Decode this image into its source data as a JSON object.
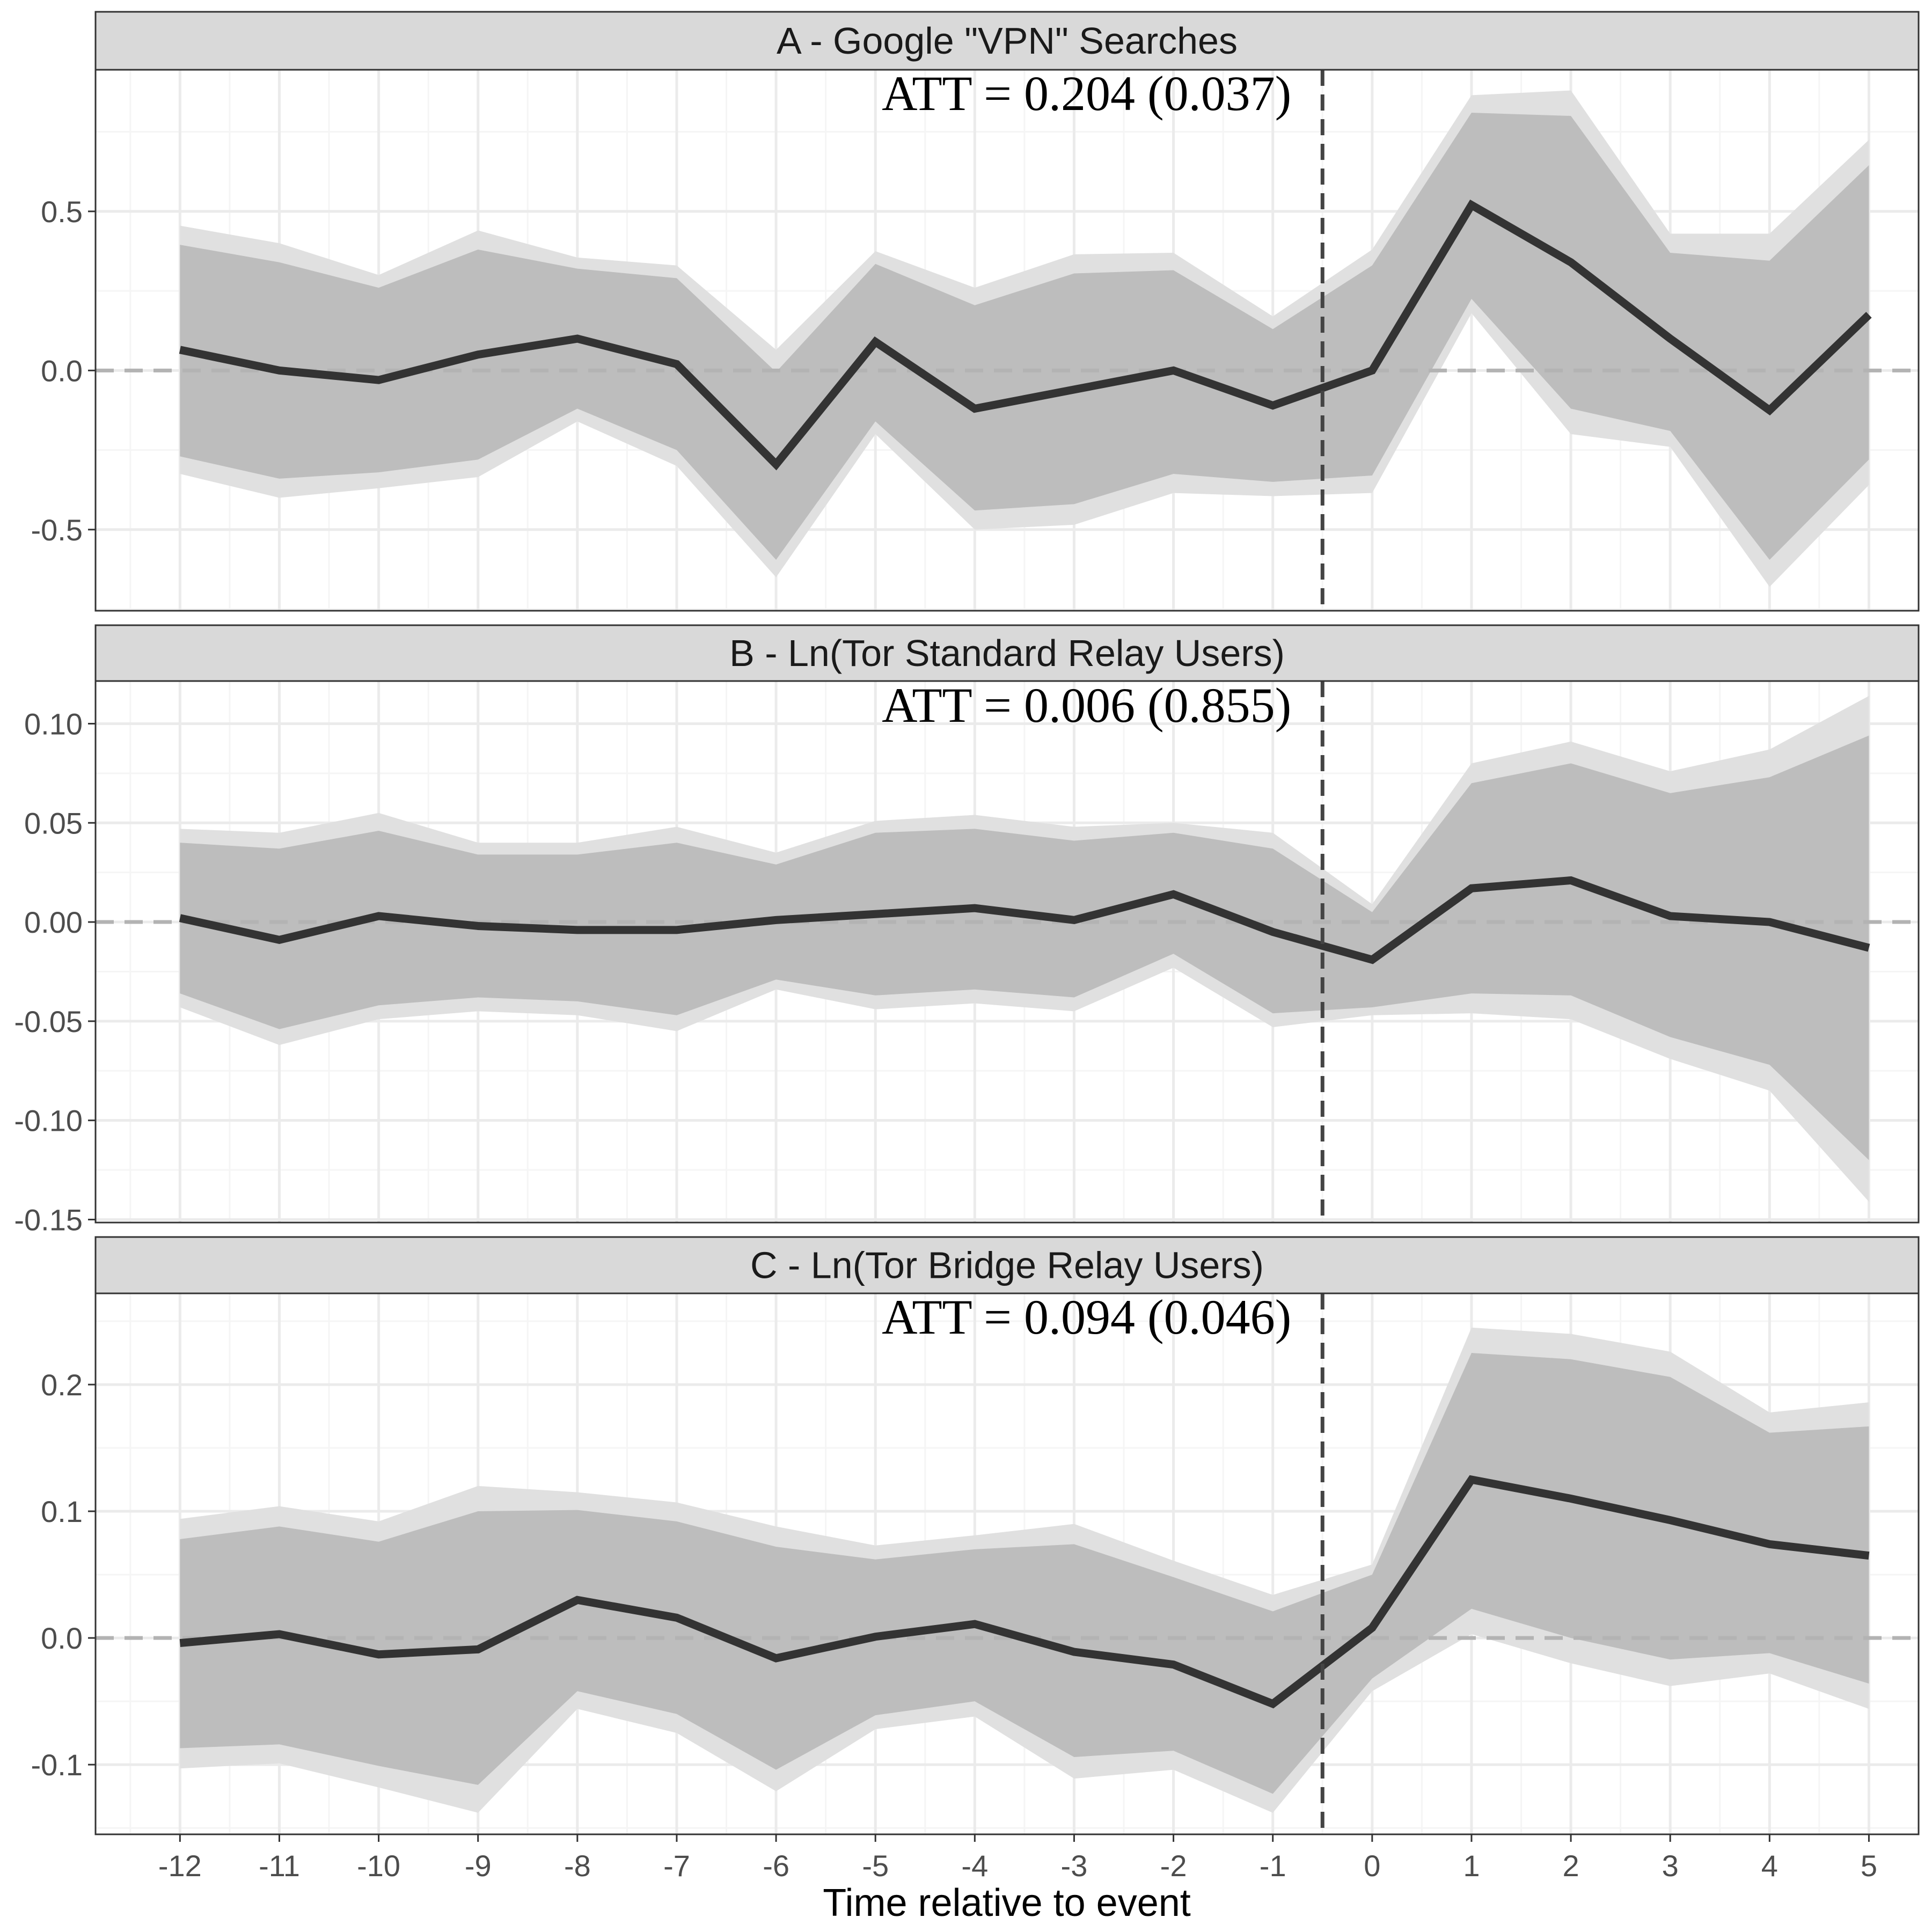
{
  "chart_data": {
    "type": "line",
    "xlabel": "Time relative to event",
    "x": [
      -12,
      -11,
      -10,
      -9,
      -8,
      -7,
      -6,
      -5,
      -4,
      -3,
      -2,
      -1,
      0,
      1,
      2,
      3,
      4,
      5
    ],
    "x_tick_labels": [
      "-12",
      "-11",
      "-10",
      "-9",
      "-8",
      "-7",
      "-6",
      "-5",
      "-4",
      "-3",
      "-2",
      "-1",
      "0",
      "1",
      "2",
      "3",
      "4",
      "5"
    ],
    "xlim": [
      -12.85,
      5.5
    ],
    "event_line_x": -0.5,
    "panels": [
      {
        "title": "A - Google \"VPN\" Searches",
        "annotation": "ATT = 0.204 (0.037)",
        "ylim": [
          -0.755,
          0.945
        ],
        "y_ticks": [
          -0.5,
          0.0,
          0.5
        ],
        "y_tick_labels": [
          "-0.5",
          "0.0",
          "0.5"
        ],
        "estimate": [
          0.065,
          0.0,
          -0.03,
          0.05,
          0.1,
          0.02,
          -0.295,
          0.09,
          -0.12,
          -0.06,
          0.0,
          -0.11,
          0.0,
          0.52,
          0.34,
          0.1,
          -0.125,
          0.175
        ],
        "ci_inner_lower": [
          -0.27,
          -0.34,
          -0.32,
          -0.28,
          -0.12,
          -0.25,
          -0.595,
          -0.16,
          -0.44,
          -0.42,
          -0.325,
          -0.35,
          -0.33,
          0.225,
          -0.12,
          -0.19,
          -0.595,
          -0.28
        ],
        "ci_inner_upper": [
          0.395,
          0.34,
          0.26,
          0.38,
          0.32,
          0.29,
          -0.005,
          0.335,
          0.205,
          0.305,
          0.315,
          0.13,
          0.33,
          0.81,
          0.8,
          0.37,
          0.345,
          0.645
        ],
        "ci_outer_lower": [
          -0.325,
          -0.4,
          -0.37,
          -0.335,
          -0.16,
          -0.3,
          -0.65,
          -0.2,
          -0.5,
          -0.485,
          -0.385,
          -0.395,
          -0.385,
          0.18,
          -0.2,
          -0.24,
          -0.68,
          -0.36
        ],
        "ci_outer_upper": [
          0.455,
          0.4,
          0.3,
          0.44,
          0.355,
          0.33,
          0.065,
          0.375,
          0.26,
          0.365,
          0.37,
          0.17,
          0.38,
          0.865,
          0.88,
          0.43,
          0.43,
          0.725
        ]
      },
      {
        "title": "B - Ln(Tor Standard Relay Users)",
        "annotation": "ATT = 0.006 (0.855)",
        "ylim": [
          -0.1515,
          0.1215
        ],
        "y_ticks": [
          -0.15,
          -0.1,
          -0.05,
          0.0,
          0.05,
          0.1
        ],
        "y_tick_labels": [
          "-0.15",
          "-0.10",
          "-0.05",
          "0.00",
          "0.05",
          "0.10"
        ],
        "estimate": [
          0.002,
          -0.009,
          0.003,
          -0.002,
          -0.004,
          -0.004,
          0.001,
          0.004,
          0.007,
          0.001,
          0.014,
          -0.005,
          -0.019,
          0.017,
          0.021,
          0.003,
          0.0,
          -0.013
        ],
        "ci_inner_lower": [
          -0.036,
          -0.054,
          -0.042,
          -0.038,
          -0.04,
          -0.047,
          -0.029,
          -0.037,
          -0.034,
          -0.038,
          -0.016,
          -0.046,
          -0.043,
          -0.036,
          -0.037,
          -0.058,
          -0.072,
          -0.12
        ],
        "ci_inner_upper": [
          0.04,
          0.037,
          0.046,
          0.034,
          0.034,
          0.04,
          0.029,
          0.045,
          0.047,
          0.041,
          0.045,
          0.037,
          0.005,
          0.07,
          0.08,
          0.065,
          0.073,
          0.094
        ],
        "ci_outer_lower": [
          -0.043,
          -0.062,
          -0.049,
          -0.045,
          -0.047,
          -0.055,
          -0.034,
          -0.044,
          -0.041,
          -0.045,
          -0.023,
          -0.053,
          -0.047,
          -0.046,
          -0.049,
          -0.069,
          -0.085,
          -0.141
        ],
        "ci_outer_upper": [
          0.047,
          0.045,
          0.055,
          0.04,
          0.04,
          0.048,
          0.035,
          0.051,
          0.054,
          0.048,
          0.05,
          0.045,
          0.009,
          0.08,
          0.091,
          0.076,
          0.087,
          0.114
        ]
      },
      {
        "title": "C - Ln(Tor Bridge Relay Users)",
        "annotation": "ATT = 0.094 (0.046)",
        "ylim": [
          -0.155,
          0.272
        ],
        "y_ticks": [
          -0.1,
          0.0,
          0.1,
          0.2
        ],
        "y_tick_labels": [
          "-0.1",
          "0.0",
          "0.1",
          "0.2"
        ],
        "estimate": [
          -0.004,
          0.003,
          -0.013,
          -0.009,
          0.03,
          0.016,
          -0.016,
          0.001,
          0.011,
          -0.011,
          -0.021,
          -0.052,
          0.008,
          0.125,
          0.11,
          0.093,
          0.074,
          0.065
        ],
        "ci_inner_lower": [
          -0.087,
          -0.084,
          -0.101,
          -0.116,
          -0.042,
          -0.06,
          -0.104,
          -0.061,
          -0.05,
          -0.094,
          -0.089,
          -0.123,
          -0.032,
          0.023,
          0.0,
          -0.017,
          -0.012,
          -0.036
        ],
        "ci_inner_upper": [
          0.078,
          0.088,
          0.076,
          0.1,
          0.101,
          0.092,
          0.072,
          0.062,
          0.07,
          0.074,
          0.048,
          0.021,
          0.05,
          0.225,
          0.22,
          0.206,
          0.162,
          0.167
        ],
        "ci_outer_lower": [
          -0.103,
          -0.099,
          -0.118,
          -0.138,
          -0.056,
          -0.075,
          -0.121,
          -0.072,
          -0.062,
          -0.111,
          -0.104,
          -0.138,
          -0.042,
          0.003,
          -0.02,
          -0.038,
          -0.028,
          -0.056
        ],
        "ci_outer_upper": [
          0.094,
          0.104,
          0.092,
          0.12,
          0.115,
          0.107,
          0.088,
          0.073,
          0.081,
          0.09,
          0.061,
          0.034,
          0.058,
          0.245,
          0.24,
          0.226,
          0.178,
          0.186
        ]
      }
    ]
  },
  "colors": {
    "strip_bg": "#d9d9d9",
    "panel_border": "#333333",
    "grid_major": "#ebebeb",
    "grid_minor": "#f5f5f5",
    "ci_outer": "#e0e0e0",
    "ci_inner": "#bdbdbd",
    "estimate_line": "#333333",
    "zero_line": "#b3b3b3",
    "event_line": "#444444"
  }
}
